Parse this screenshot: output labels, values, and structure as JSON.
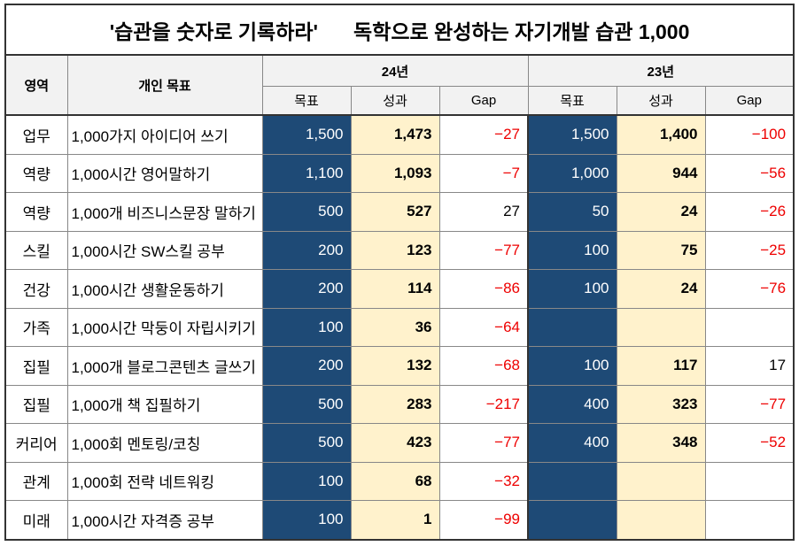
{
  "header": {
    "title_left": "'습관을 숫자로 기록하라'",
    "title_right": "독학으로 완성하는 자기개발 습관 1,000"
  },
  "table": {
    "columns": {
      "area": "영역",
      "goal": "개인 목표",
      "years": [
        "24년",
        "23년"
      ],
      "sub": [
        "목표",
        "성과",
        "Gap"
      ]
    },
    "rows": [
      [
        "업무",
        "1,000가지 아이디어 쓰기",
        "1,500",
        "1,473",
        "−27",
        "1,500",
        "1,400",
        "−100"
      ],
      [
        "역량",
        "1,000시간 영어말하기",
        "1,100",
        "1,093",
        "−7",
        "1,000",
        "944",
        "−56"
      ],
      [
        "역량",
        "1,000개 비즈니스문장 말하기",
        "500",
        "527",
        "27",
        "50",
        "24",
        "−26"
      ],
      [
        "스킬",
        "1,000시간 SW스킬 공부",
        "200",
        "123",
        "−77",
        "100",
        "75",
        "−25"
      ],
      [
        "건강",
        "1,000시간 생활운동하기",
        "200",
        "114",
        "−86",
        "100",
        "24",
        "−76"
      ],
      [
        "가족",
        "1,000시간 막둥이 자립시키기",
        "100",
        "36",
        "−64",
        null,
        null,
        null
      ],
      [
        "집필",
        "1,000개 블로그콘텐츠 글쓰기",
        "200",
        "132",
        "−68",
        "100",
        "117",
        "17"
      ],
      [
        "집필",
        "1,000개 책 집필하기",
        "500",
        "283",
        "−217",
        "400",
        "323",
        "−77"
      ],
      [
        "커리어",
        "1,000회 멘토링/코칭",
        "500",
        "423",
        "−77",
        "400",
        "348",
        "−52"
      ],
      [
        "관계",
        "1,000회 전략 네트워킹",
        "100",
        "68",
        "−32",
        null,
        null,
        null
      ],
      [
        "미래",
        "1,000시간 자격증 공부",
        "100",
        "1",
        "−99",
        null,
        null,
        null
      ]
    ]
  }
}
